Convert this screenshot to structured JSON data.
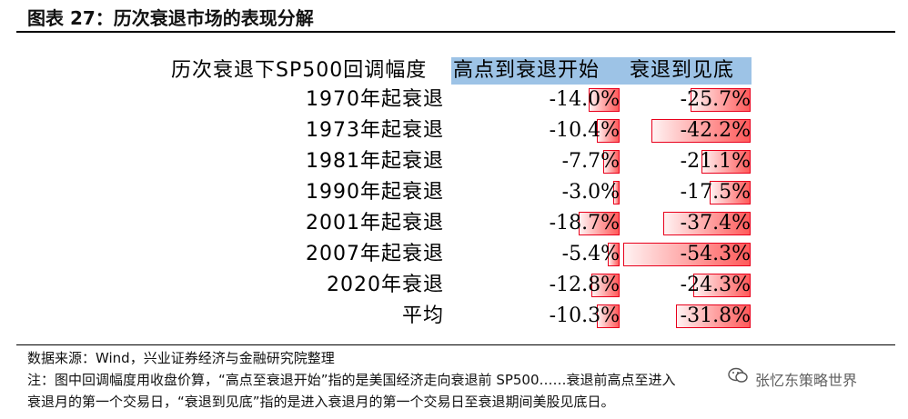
{
  "title": "图表 27：历次衰退市场的表现分解",
  "table": {
    "header_row_label": "历次衰退下SP500回调幅度",
    "columns": [
      "高点到衰退开始",
      "衰退到见底"
    ],
    "rows": [
      {
        "label": "1970年起衰退",
        "col1": "-14.0%",
        "col2": "-25.7%",
        "v1": -14.0,
        "v2": -25.7
      },
      {
        "label": "1973年起衰退",
        "col1": "-10.4%",
        "col2": "-42.2%",
        "v1": -10.4,
        "v2": -42.2
      },
      {
        "label": "1981年起衰退",
        "col1": "-7.7%",
        "col2": "-21.1%",
        "v1": -7.7,
        "v2": -21.1
      },
      {
        "label": "1990年起衰退",
        "col1": "-3.0%",
        "col2": "-17.5%",
        "v1": -3.0,
        "v2": -17.5
      },
      {
        "label": "2001年起衰退",
        "col1": "-18.7%",
        "col2": "-37.4%",
        "v1": -18.7,
        "v2": -37.4
      },
      {
        "label": "2007年起衰退",
        "col1": "-5.4%",
        "col2": "-54.3%",
        "v1": -5.4,
        "v2": -54.3
      },
      {
        "label": "2020年衰退",
        "col1": "-12.8%",
        "col2": "-24.3%",
        "v1": -12.8,
        "v2": -24.3
      },
      {
        "label": "平均",
        "col1": "-10.3%",
        "col2": "-31.8%",
        "v1": -10.3,
        "v2": -31.8
      }
    ]
  },
  "colors": {
    "header_bg": "#9dc3e6",
    "bar_border": "#e8001c",
    "bar_fill": "#ff5a5a"
  },
  "source_note": "数据来源：Wind，兴业证券经济与金融研究院整理",
  "note_line1": "注：图中回调幅度用收盘价算，“高点至衰退开始”指的是美国经济走向衰退前 SP500……衰退前高点至进入",
  "note_line2": "衰退月的第一个交易日，“衰退到见底”指的是进入衰退月的第一个交易日至衰退期间美股见底日。",
  "watermark": "张忆东策略世界"
}
